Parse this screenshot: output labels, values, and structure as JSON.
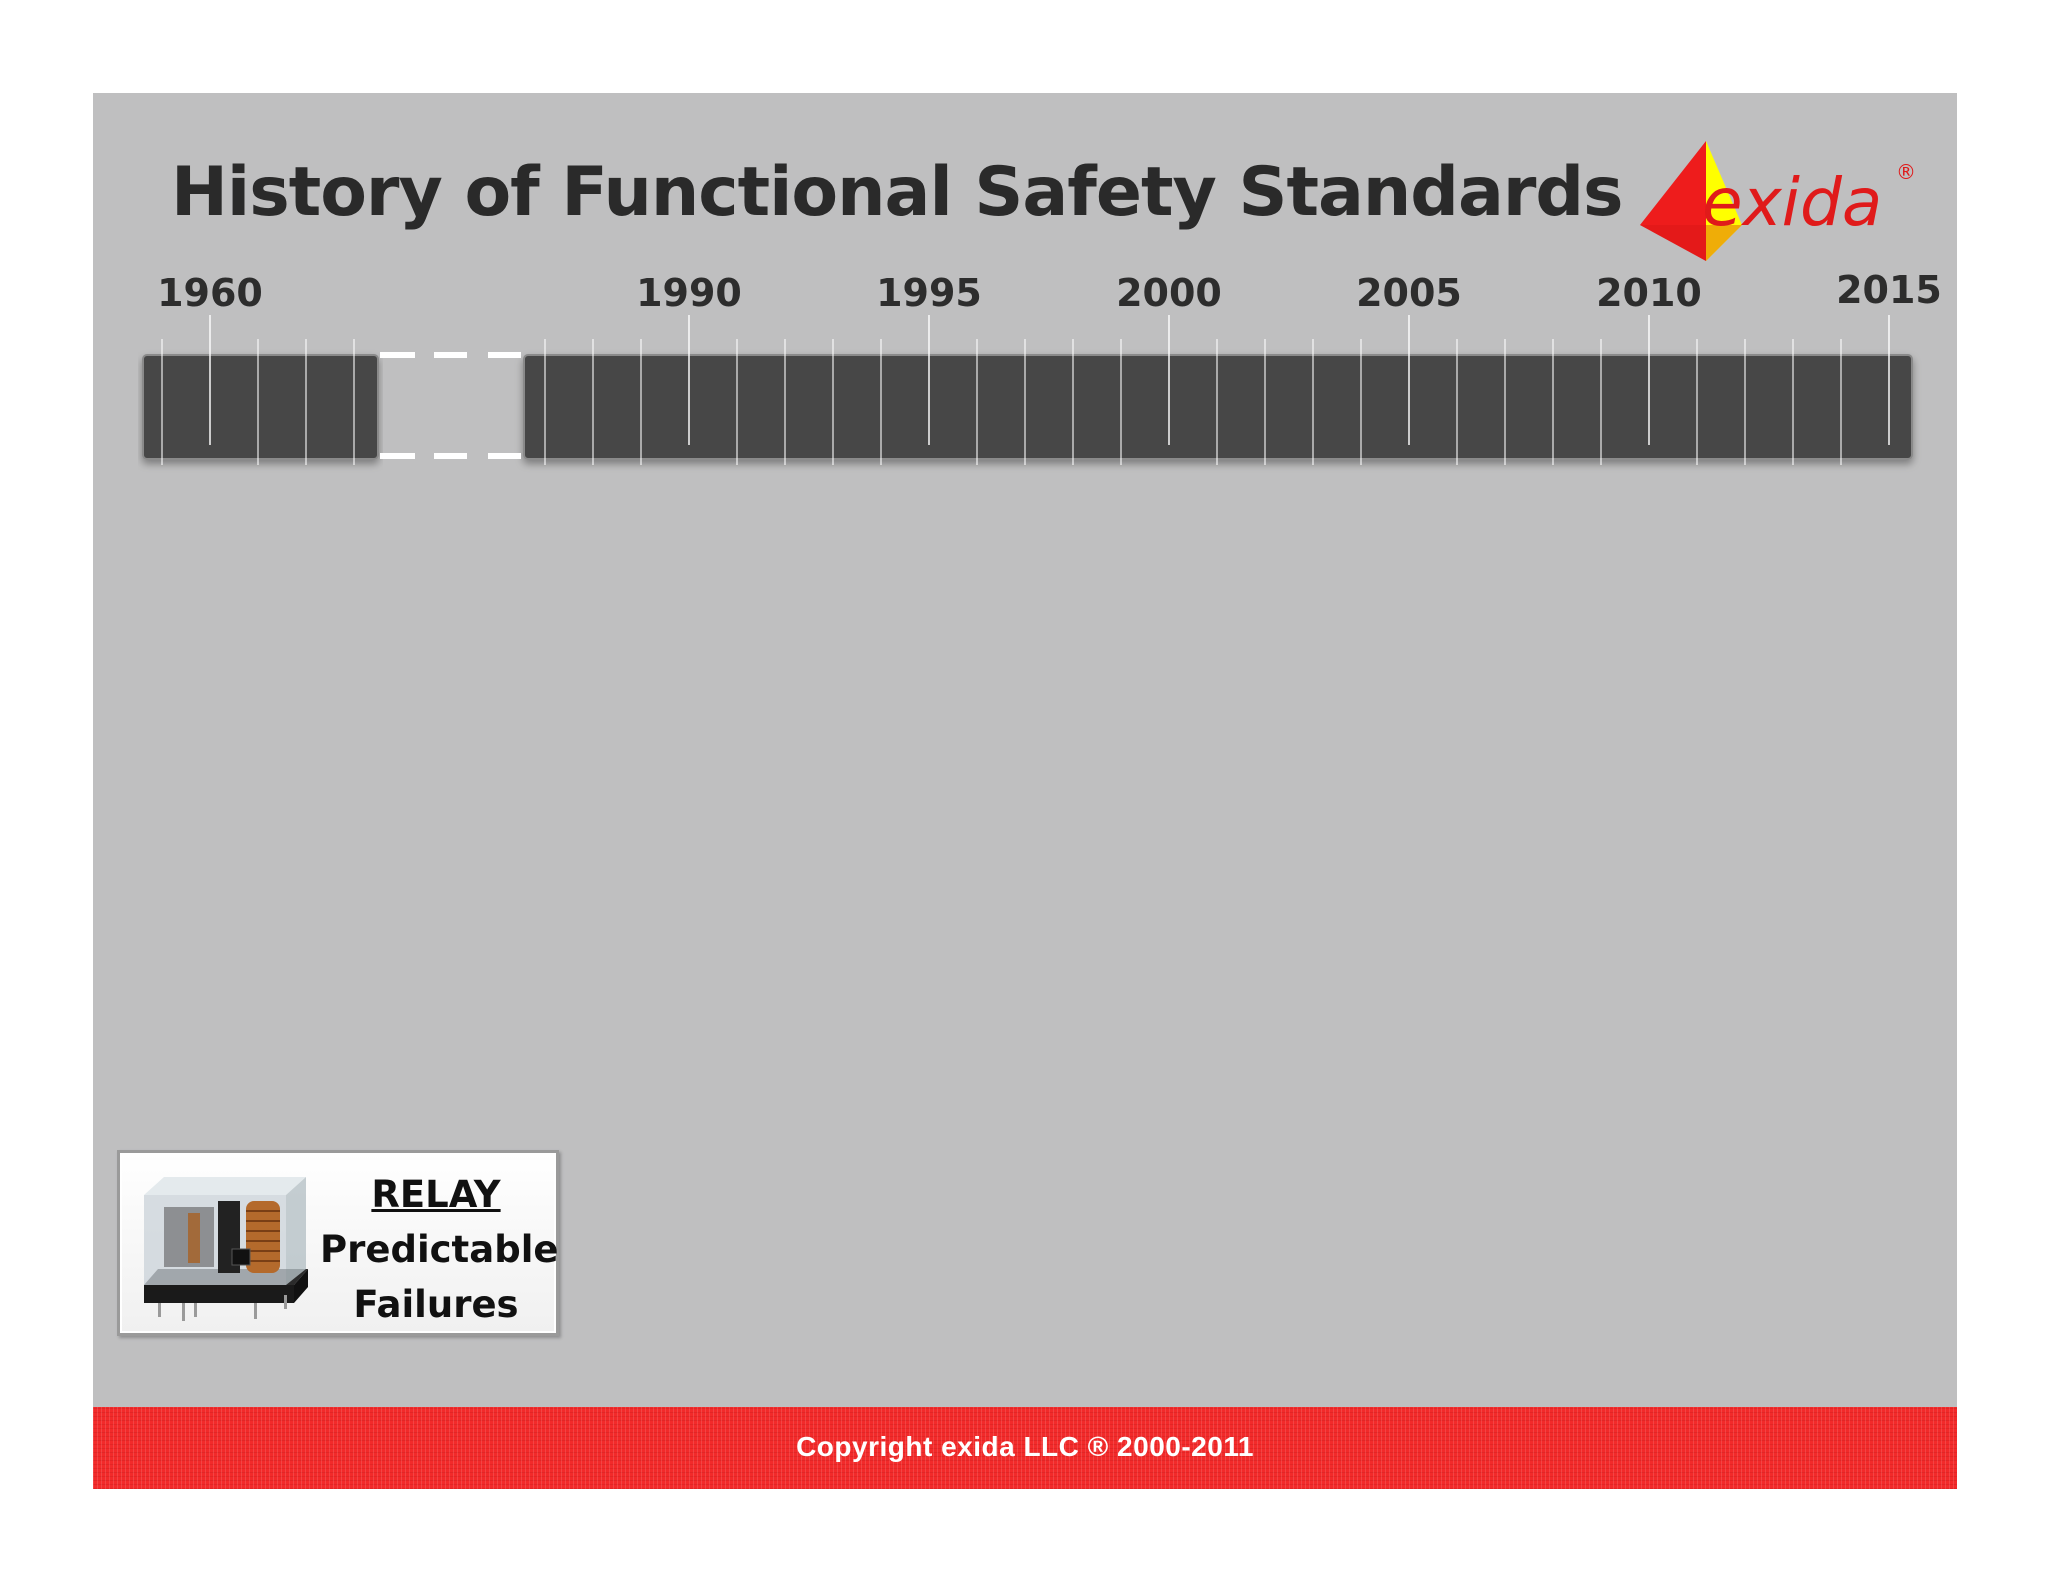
{
  "slide": {
    "title": "History of Functional Safety Standards"
  },
  "logo": {
    "text": "exida",
    "mark": "®",
    "colors": {
      "red": "#ee1c1c",
      "yellow": "#ffff00",
      "text": "#e01a1a"
    }
  },
  "timeline": {
    "years": [
      "1960",
      "1990",
      "1995",
      "2000",
      "2005",
      "2010",
      "2015"
    ],
    "bar_color": "#474747",
    "tick_color": "#ffffff"
  },
  "relay_box": {
    "heading": "RELAY",
    "line1": "Predictable",
    "line2": "Failures",
    "image_icon": "relay-component-icon"
  },
  "footer": {
    "copyright": "Copyright exida LLC ® 2000-2011",
    "color": "#f22a2a"
  }
}
